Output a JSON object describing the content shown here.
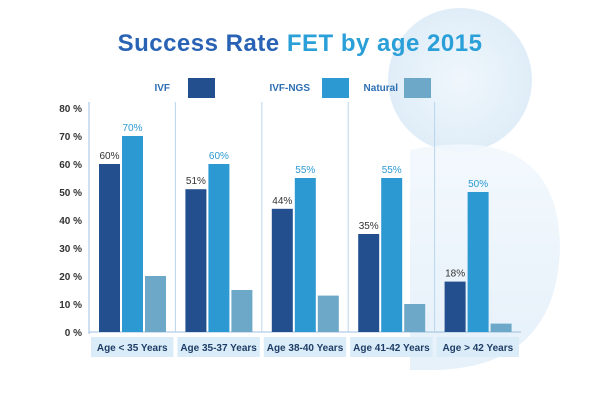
{
  "title": {
    "part1": "Success Rate",
    "part2": "FET by age 2015"
  },
  "colors": {
    "ivf": "#234f8f",
    "ivf_ngs": "#2c99d2",
    "natural": "#6ea8c8"
  },
  "chart_data": {
    "type": "bar",
    "title": "Success Rate FET by age 2015",
    "categories": [
      "Age < 35 Years",
      "Age 35-37 Years",
      "Age 38-40 Years",
      "Age 41-42 Years",
      "Age > 42 Years"
    ],
    "series": [
      {
        "name": "IVF",
        "values": [
          60,
          51,
          44,
          35,
          18
        ],
        "labels": [
          "60%",
          "51%",
          "44%",
          "35%",
          "18%"
        ]
      },
      {
        "name": "IVF-NGS",
        "values": [
          70,
          60,
          55,
          55,
          50
        ],
        "labels": [
          "70%",
          "60%",
          "55%",
          "55%",
          "50%"
        ]
      },
      {
        "name": "Natural",
        "values": [
          20,
          15,
          13,
          10,
          3
        ],
        "labels": [
          "",
          "",
          "",
          "",
          ""
        ]
      }
    ],
    "ylim": [
      0,
      80
    ],
    "yticks": [
      0,
      10,
      20,
      30,
      40,
      50,
      60,
      70,
      80
    ],
    "ytick_labels": [
      "0 %",
      "10 %",
      "20 %",
      "30 %",
      "40 %",
      "50 %",
      "60 %",
      "70 %",
      "80 %"
    ],
    "legend_position": "top",
    "grid": false
  }
}
